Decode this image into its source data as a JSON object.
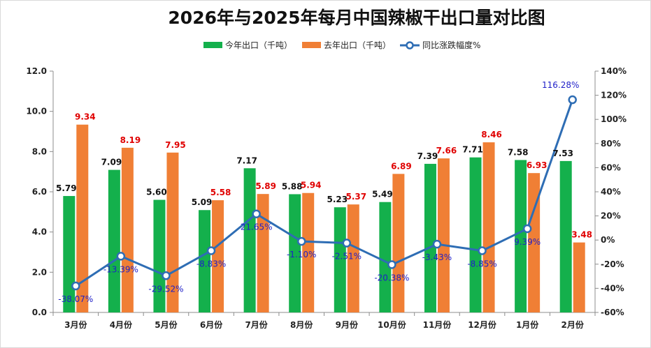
{
  "chart_data": {
    "type": "bar",
    "title": "2026年与2025年每月中国辣椒干出口量对比图",
    "categories": [
      "3月份",
      "4月份",
      "5月份",
      "6月份",
      "7月份",
      "8月份",
      "9月份",
      "10月份",
      "11月份",
      "12月份",
      "1月份",
      "2月份"
    ],
    "series": [
      {
        "name": "今年出口（千吨）",
        "type": "bar",
        "axis": "left",
        "color": "#14b04c",
        "values": [
          5.79,
          7.09,
          5.6,
          5.09,
          7.17,
          5.88,
          5.23,
          5.49,
          7.39,
          7.71,
          7.58,
          7.53
        ],
        "labels": [
          "5.79",
          "7.09",
          "5.60",
          "5.09",
          "7.17",
          "5.88",
          "5.23",
          "5.49",
          "7.39",
          "7.71",
          "7.58",
          "7.53"
        ]
      },
      {
        "name": "去年出口（千吨）",
        "type": "bar",
        "axis": "left",
        "color": "#f07f35",
        "values": [
          9.34,
          8.19,
          7.95,
          5.58,
          5.89,
          5.94,
          5.37,
          6.89,
          7.66,
          8.46,
          6.93,
          3.48
        ],
        "labels": [
          "9.34",
          "8.19",
          "7.95",
          "5.58",
          "5.89",
          "5.94",
          "5.37",
          "6.89",
          "7.66",
          "8.46",
          "6.93",
          "3.48"
        ]
      },
      {
        "name": "同比涨跌幅度%",
        "type": "line",
        "axis": "right",
        "color": "#2e6db4",
        "values": [
          -38.07,
          -13.39,
          -29.52,
          -8.83,
          21.65,
          -1.1,
          -2.51,
          -20.38,
          -3.43,
          -8.85,
          9.39,
          116.28
        ],
        "labels": [
          "-38.07%",
          "-13.39%",
          "-29.52%",
          "-8.83%",
          "21.65%",
          "-1.10%",
          "-2.51%",
          "-20.38%",
          "-3.43%",
          "-8.85%",
          "9.39%",
          "116.28%"
        ]
      }
    ],
    "left_axis": {
      "min": 0,
      "max": 12,
      "ticks": [
        "0.0",
        "2.0",
        "4.0",
        "6.0",
        "8.0",
        "10.0",
        "12.0"
      ]
    },
    "right_axis": {
      "min": -60,
      "max": 140,
      "ticks": [
        "-60%",
        "-40%",
        "-20%",
        "0%",
        "20%",
        "40%",
        "60%",
        "80%",
        "100%",
        "120%",
        "140%"
      ]
    },
    "legend_position": "top-center",
    "grid": false
  }
}
